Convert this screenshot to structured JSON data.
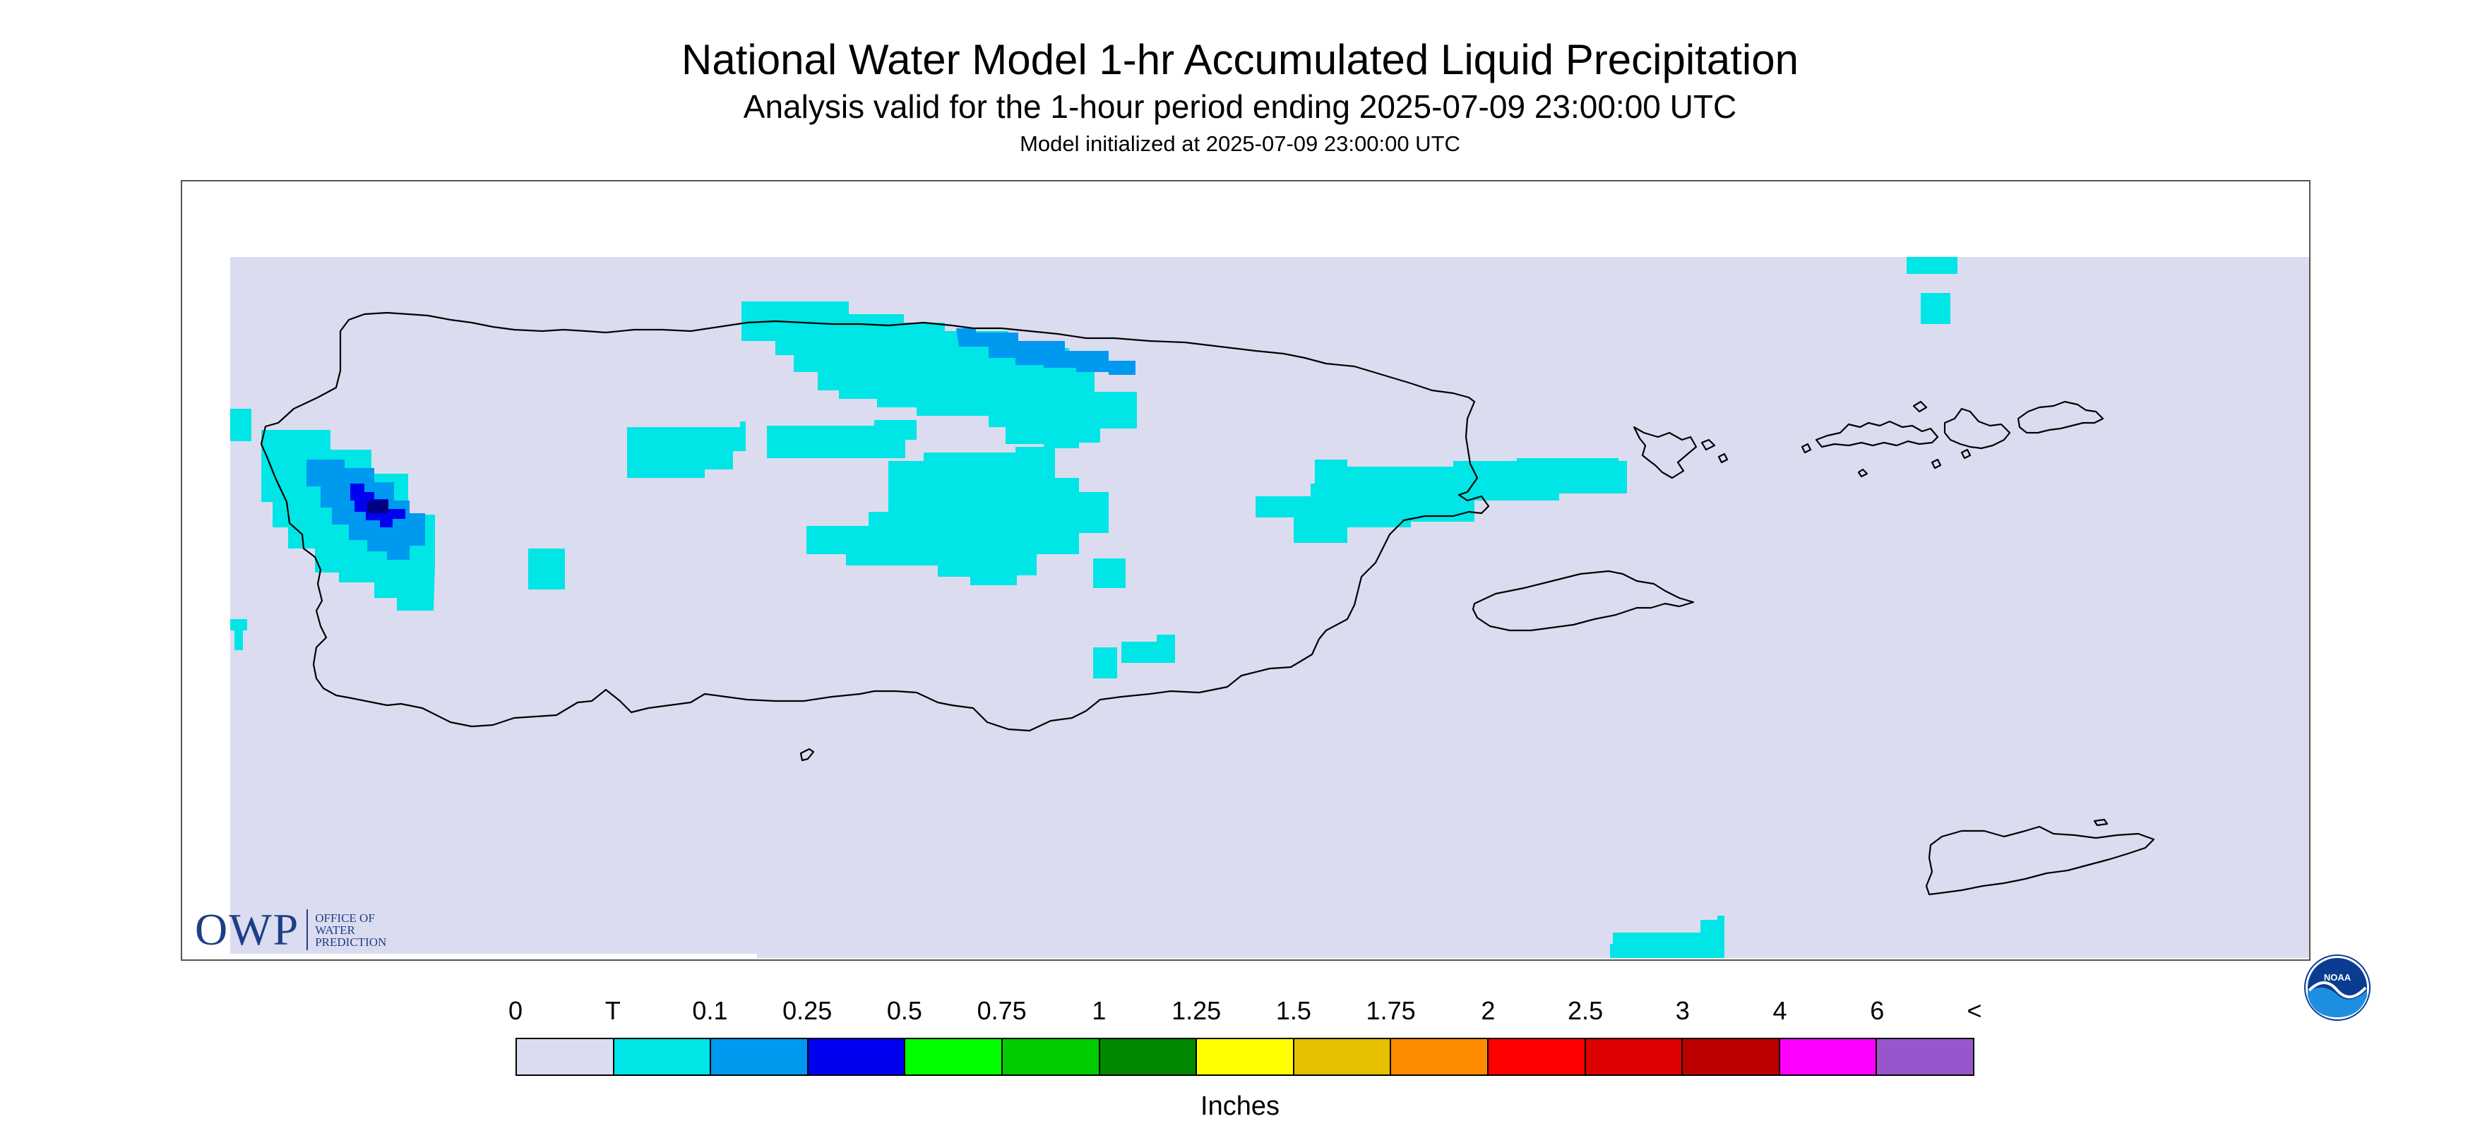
{
  "header": {
    "title": "National Water Model 1-hr Accumulated Liquid Precipitation",
    "subtitle": "Analysis valid for the 1-hour period ending 2025-07-09 23:00:00 UTC",
    "initialized": "Model initialized at 2025-07-09 23:00:00 UTC"
  },
  "map": {
    "background_color": "#ffffff",
    "no_precip_color": "#dcdcf0",
    "coastline_color": "#000000",
    "regions": [
      "Puerto Rico",
      "Vieques",
      "Culebra",
      "U.S. Virgin Islands"
    ]
  },
  "logos": {
    "owp": {
      "word": "OWP",
      "line1": "OFFICE OF",
      "line2": "WATER",
      "line3": "PREDICTION"
    },
    "noaa": {
      "text": "NOAA"
    }
  },
  "legend": {
    "labels": [
      "0",
      "T",
      "0.1",
      "0.25",
      "0.5",
      "0.75",
      "1",
      "1.25",
      "1.5",
      "1.75",
      "2",
      "2.5",
      "3",
      "4",
      "6",
      "<"
    ],
    "colors": [
      "#dcdcf0",
      "#00e5e5",
      "#0099f0",
      "#0000f0",
      "#00ff00",
      "#00cc00",
      "#008800",
      "#ffff00",
      "#e5bf00",
      "#ff8c00",
      "#ff0000",
      "#dd0000",
      "#bb0000",
      "#ff00ff",
      "#9955cc"
    ],
    "units": "Inches"
  }
}
